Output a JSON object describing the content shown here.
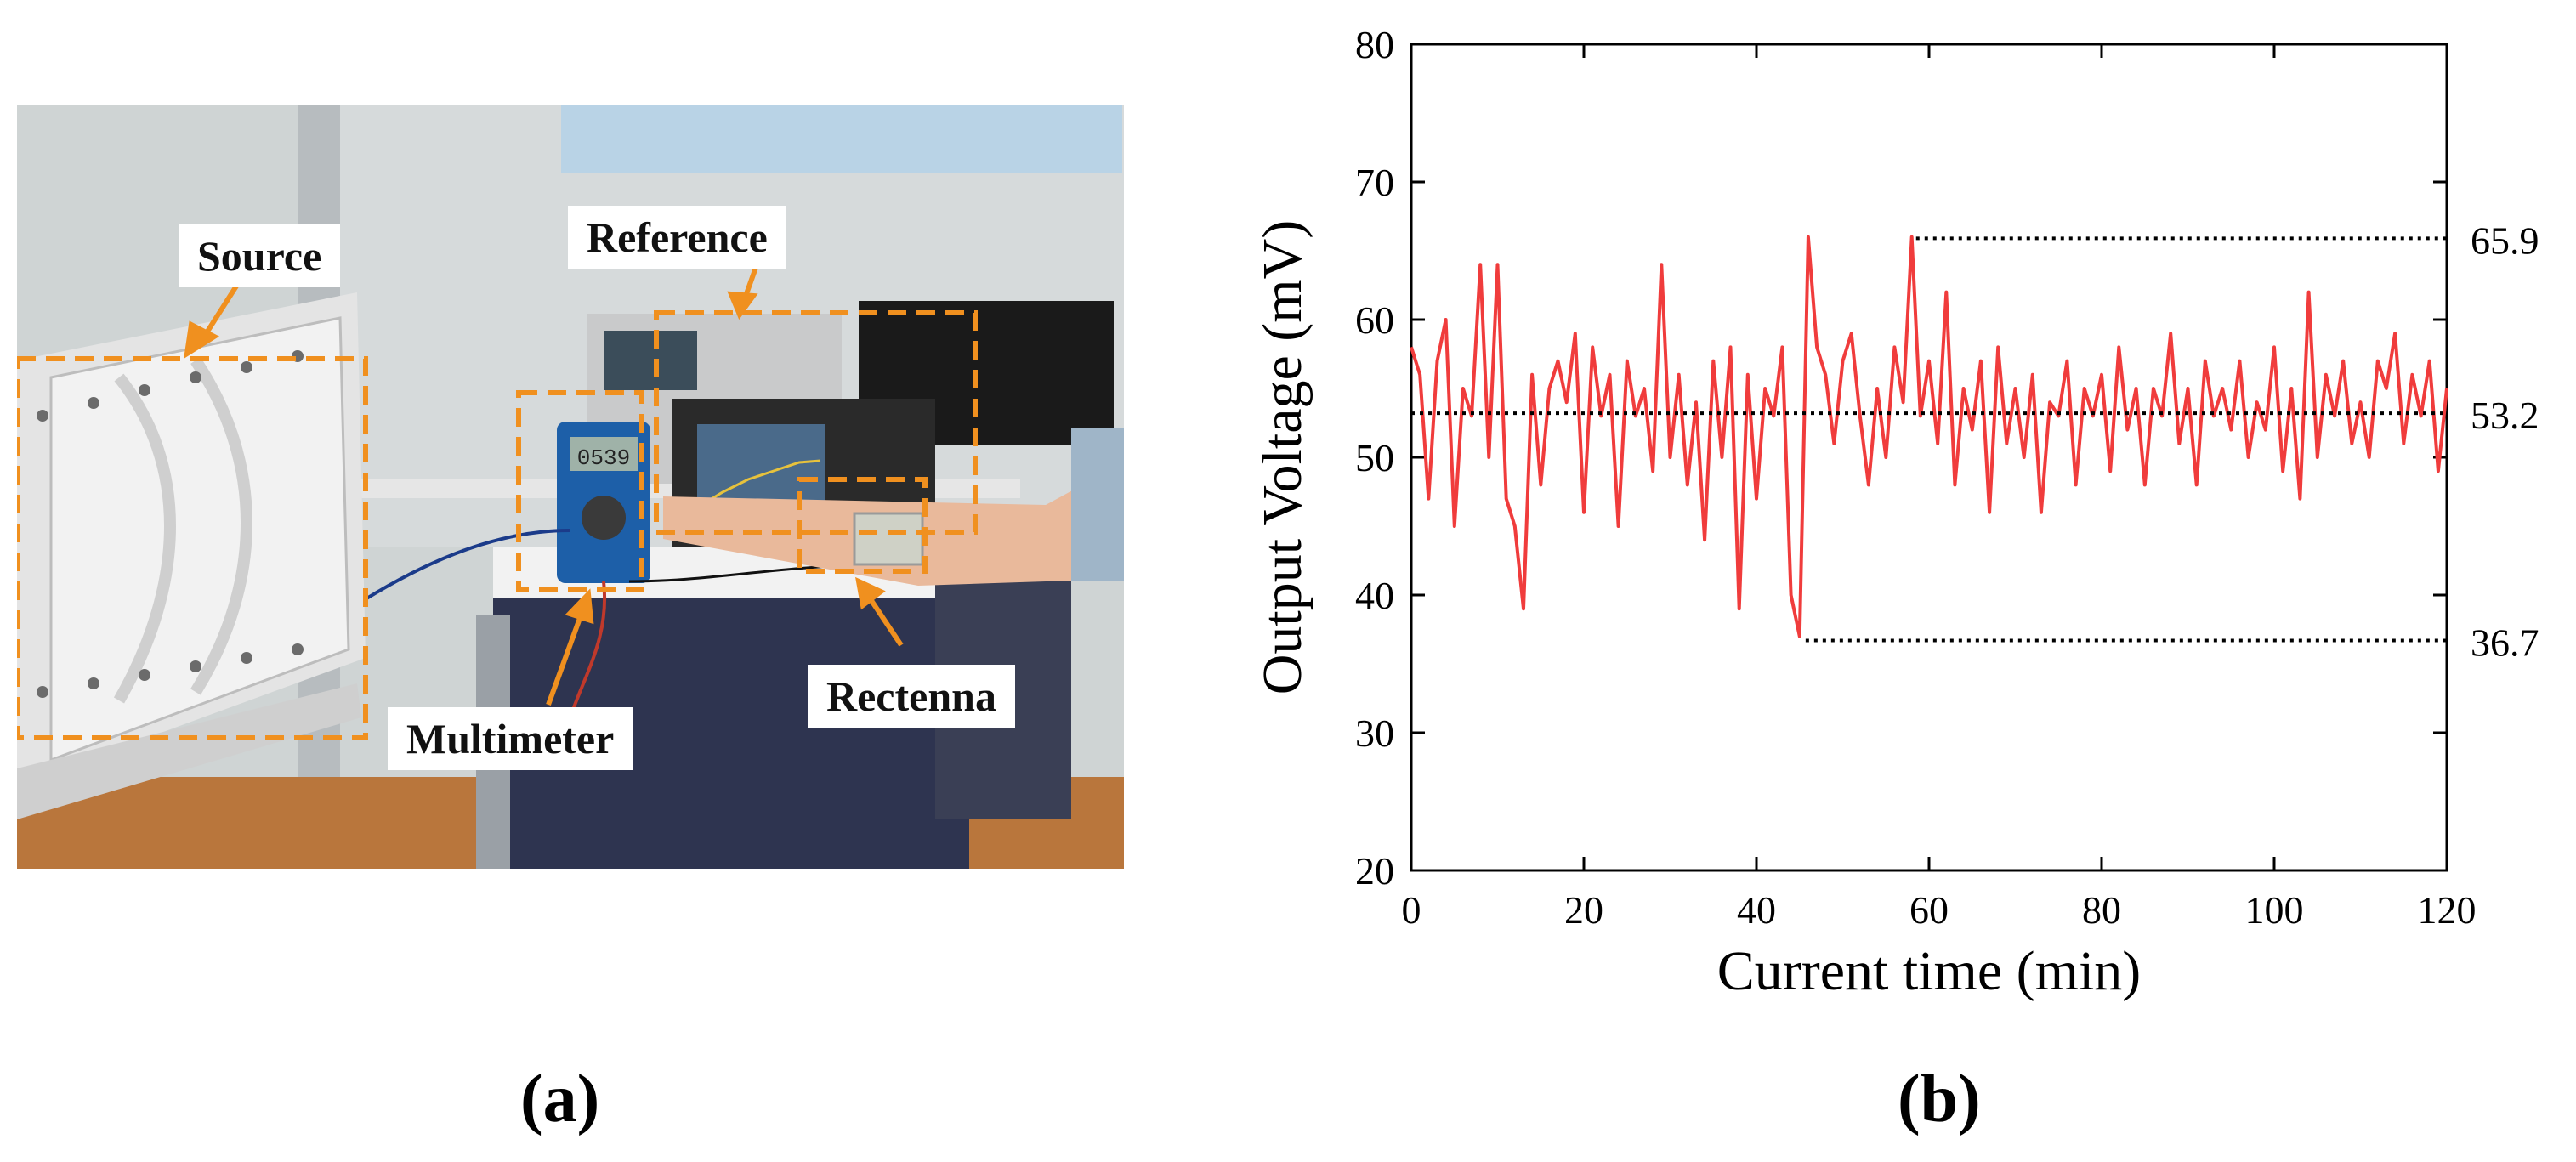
{
  "panel_a": {
    "caption": "(a)",
    "labels": {
      "source": "Source",
      "reference": "Reference",
      "multimeter": "Multimeter",
      "rectenna": "Rectenna"
    },
    "multimeter_display": "0539"
  },
  "panel_b": {
    "caption": "(b)"
  },
  "chart_data": {
    "type": "line",
    "xlabel": "Current time (min)",
    "ylabel": "Output Voltage (mV)",
    "xlim": [
      0,
      120
    ],
    "ylim": [
      20,
      80
    ],
    "xticks": [
      0,
      20,
      40,
      60,
      80,
      100,
      120
    ],
    "yticks": [
      20,
      30,
      40,
      50,
      60,
      70,
      80
    ],
    "grid": false,
    "legend": "none",
    "line_color": "#f03c3c",
    "series": [
      {
        "x": [
          0,
          1,
          2,
          3,
          4,
          5,
          6,
          7,
          8,
          9,
          10,
          11,
          12,
          13,
          14,
          15,
          16,
          17,
          18,
          19,
          20,
          21,
          22,
          23,
          24,
          25,
          26,
          27,
          28,
          29,
          30,
          31,
          32,
          33,
          34,
          35,
          36,
          37,
          38,
          39,
          40,
          41,
          42,
          43,
          44,
          45,
          46,
          47,
          48,
          49,
          50,
          51,
          52,
          53,
          54,
          55,
          56,
          57,
          58,
          59,
          60,
          61,
          62,
          63,
          64,
          65,
          66,
          67,
          68,
          69,
          70,
          71,
          72,
          73,
          74,
          75,
          76,
          77,
          78,
          79,
          80,
          81,
          82,
          83,
          84,
          85,
          86,
          87,
          88,
          89,
          90,
          91,
          92,
          93,
          94,
          95,
          96,
          97,
          98,
          99,
          100,
          101,
          102,
          103,
          104,
          105,
          106,
          107,
          108,
          109,
          110,
          111,
          112,
          113,
          114,
          115,
          116,
          117,
          118,
          119,
          120
        ],
        "y": [
          58,
          56,
          47,
          57,
          60,
          45,
          55,
          53,
          64,
          50,
          64,
          47,
          45,
          39,
          56,
          48,
          55,
          57,
          54,
          59,
          46,
          58,
          53,
          56,
          45,
          57,
          53,
          55,
          49,
          64,
          50,
          56,
          48,
          54,
          44,
          57,
          50,
          58,
          39,
          56,
          47,
          55,
          53,
          58,
          40,
          37,
          66,
          58,
          56,
          51,
          57,
          59,
          53,
          48,
          55,
          50,
          58,
          54,
          66,
          53,
          57,
          51,
          62,
          48,
          55,
          52,
          57,
          46,
          58,
          51,
          55,
          50,
          56,
          46,
          54,
          53,
          57,
          48,
          55,
          53,
          56,
          49,
          58,
          52,
          55,
          48,
          55,
          53,
          59,
          51,
          55,
          48,
          57,
          53,
          55,
          52,
          57,
          50,
          54,
          52,
          58,
          49,
          55,
          47,
          62,
          50,
          56,
          53,
          57,
          51,
          54,
          50,
          57,
          55,
          59,
          51,
          56,
          53,
          57,
          49,
          55
        ]
      }
    ],
    "reference_lines": [
      {
        "value": 65.9,
        "label": "65.9",
        "x_start": 58.5
      },
      {
        "value": 53.2,
        "label": "53.2",
        "x_start": 0
      },
      {
        "value": 36.7,
        "label": "36.7",
        "x_start": 45.7
      }
    ]
  }
}
